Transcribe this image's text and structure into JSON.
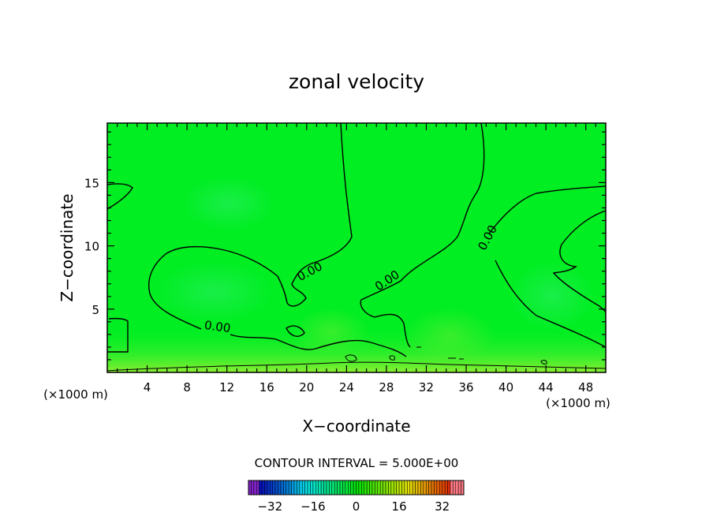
{
  "chart_data": {
    "type": "heatmap",
    "title": "zonal velocity",
    "xlabel": "X−coordinate",
    "ylabel": "Z−coordinate",
    "x_unit_left": "(×1000 m)",
    "x_unit_right": "(×1000 m)",
    "xlim": [
      0,
      50
    ],
    "ylim": [
      0,
      19.7
    ],
    "x_ticks": [
      4,
      8,
      12,
      16,
      20,
      24,
      28,
      32,
      36,
      40,
      44,
      48
    ],
    "y_ticks": [
      5,
      10,
      15
    ],
    "x_tick_labels": [
      "4",
      "8",
      "12",
      "16",
      "20",
      "24",
      "28",
      "32",
      "36",
      "40",
      "44",
      "48"
    ],
    "y_tick_labels": [
      "5",
      "10",
      "15"
    ],
    "grid": false,
    "contour_level": 0.0,
    "contour_labels": [
      {
        "text": "0.00",
        "x": 11,
        "z": 3.3
      },
      {
        "text": "0.00",
        "x": 20.5,
        "z": 7.7
      },
      {
        "text": "0.00",
        "x": 28.3,
        "z": 7.0
      },
      {
        "text": "0.00",
        "x": 38.5,
        "z": 10.5
      }
    ],
    "contour_interval_text": "CONTOUR INTERVAL = 5.000E+00",
    "colorbar": {
      "min": -40,
      "max": 40,
      "step": 1,
      "tick_values": [
        -32,
        -16,
        0,
        16,
        32
      ],
      "tick_labels": [
        "−32",
        "−16",
        "0",
        "16",
        "32"
      ]
    }
  }
}
